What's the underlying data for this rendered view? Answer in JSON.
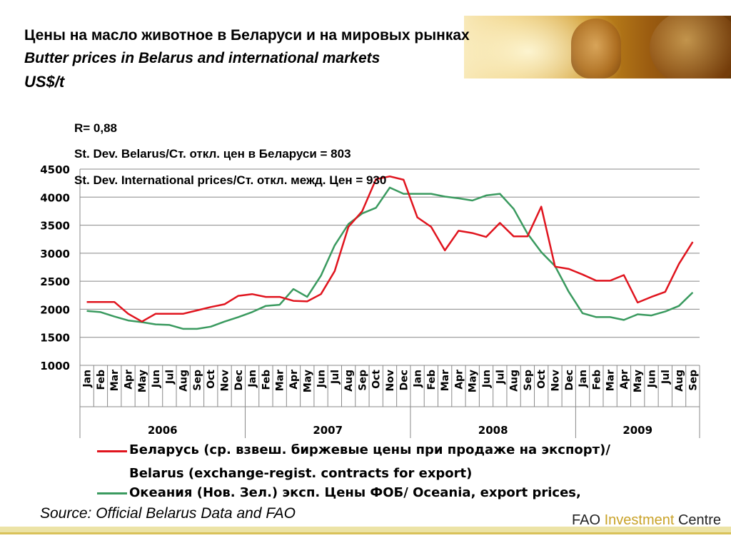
{
  "header": {
    "title_ru": "Цены на масло животное в Беларуси и на мировых рынках",
    "title_en": "Butter prices in Belarus and international markets",
    "unit": "US$/t"
  },
  "stats": {
    "r": "R= 0,88",
    "stdev_belarus": "St. Dev. Belarus/Ст. откл. цен в Беларуси = 803",
    "stdev_international": "St. Dev. International prices/Ст. откл. межд. Цен = 930"
  },
  "legend": {
    "belarus_line1": "Беларусь (ср. взвеш. биржевые цены при продаже на экспорт)/",
    "belarus_line2": "Belarus (exchange-regist. contracts for export)",
    "oceania": "Океания (Нов. Зел.) эксп. Цены ФОБ/ Oceania, export prices,"
  },
  "source": "Source: Official Belarus Data and FAO",
  "footer": {
    "org_a": "FAO",
    "org_b": "Investment",
    "org_c": "Centre"
  },
  "colors": {
    "belarus": "#e0141e",
    "oceania": "#3a9a5f",
    "grid": "#888888"
  },
  "chart_data": {
    "type": "line",
    "ylim": [
      1000,
      4500
    ],
    "yticks": [
      1000,
      1500,
      2000,
      2500,
      3000,
      3500,
      4000,
      4500
    ],
    "grid": "horizontal",
    "categories": [
      "Jan",
      "Feb",
      "Mar",
      "Apr",
      "May",
      "Jun",
      "Jul",
      "Aug",
      "Sep",
      "Oct",
      "Nov",
      "Dec",
      "Jan",
      "Feb",
      "Mar",
      "Apr",
      "May",
      "Jun",
      "Jul",
      "Aug",
      "Sep",
      "Oct",
      "Nov",
      "Dec",
      "Jan",
      "Feb",
      "Mar",
      "Apr",
      "May",
      "Jun",
      "Jul",
      "Aug",
      "Sep",
      "Oct",
      "Nov",
      "Dec",
      "Jan",
      "Feb",
      "Mar",
      "Apr",
      "May",
      "Jun",
      "Jul",
      "Aug",
      "Sep"
    ],
    "years": [
      {
        "label": "2006",
        "months": 12
      },
      {
        "label": "2007",
        "months": 12
      },
      {
        "label": "2008",
        "months": 12
      },
      {
        "label": "2009",
        "months": 9
      }
    ],
    "series": [
      {
        "name": "Беларусь (ср. взвеш. биржевые цены при продаже на экспорт)/ Belarus (exchange-regist. contracts for export)",
        "color": "#e0141e",
        "values": [
          2130,
          2130,
          2130,
          1920,
          1780,
          1920,
          1920,
          1920,
          1980,
          2040,
          2090,
          2240,
          2270,
          2220,
          2220,
          2150,
          2140,
          2270,
          2680,
          3470,
          3750,
          4320,
          4370,
          4310,
          3640,
          3470,
          3050,
          3400,
          3360,
          3290,
          3540,
          3300,
          3300,
          3830,
          2760,
          2720,
          2620,
          2510,
          2510,
          2610,
          2120,
          2220,
          2310,
          2810,
          3200
        ]
      },
      {
        "name": "Океания (Нов. Зел.) эксп. Цены ФОБ/ Oceania, export prices,",
        "color": "#3a9a5f",
        "values": [
          1970,
          1950,
          1870,
          1800,
          1770,
          1730,
          1720,
          1650,
          1650,
          1690,
          1780,
          1860,
          1950,
          2060,
          2080,
          2360,
          2220,
          2600,
          3140,
          3520,
          3710,
          3810,
          4170,
          4060,
          4060,
          4060,
          4010,
          3980,
          3940,
          4030,
          4060,
          3790,
          3350,
          3020,
          2770,
          2310,
          1930,
          1860,
          1860,
          1810,
          1910,
          1890,
          1960,
          2060,
          2300
        ]
      }
    ]
  }
}
